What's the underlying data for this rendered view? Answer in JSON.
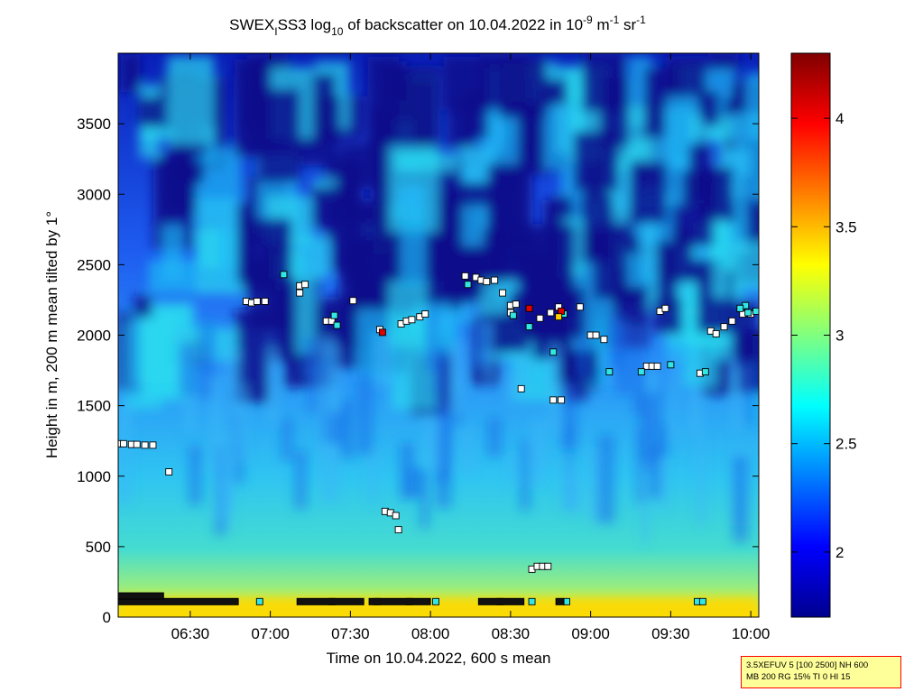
{
  "chart_data": {
    "type": "heatmap",
    "title": {
      "lead": "SWEX",
      "sub1": "I",
      "mid": "SS3 log",
      "sub2": "10",
      "tail": " of backscatter on 10.04.2022 in 10",
      "sup1": "-9",
      "unit_m": " m",
      "sup2": "-1",
      "unit_sr": " sr",
      "sup3": "-1"
    },
    "xlabel": "Time on 10.04.2022, 600 s mean",
    "ylabel": "Height in m, 200 m mean tilted by 1°",
    "x_range": [
      "06:03",
      "10:03"
    ],
    "x_ticks": [
      "06:30",
      "07:00",
      "07:30",
      "08:00",
      "08:30",
      "09:00",
      "09:30",
      "10:00"
    ],
    "ylim": [
      0,
      4000
    ],
    "y_ticks": [
      0,
      500,
      1000,
      1500,
      2000,
      2500,
      3000,
      3500
    ],
    "colorbar": {
      "range": [
        1.7,
        4.3
      ],
      "ticks": [
        "2",
        "2.5",
        "3",
        "3.5",
        "4"
      ],
      "colormap": "jet"
    },
    "grid": false,
    "markers": {
      "white": [
        [
          "06:03",
          1230
        ],
        [
          "06:05",
          1230
        ],
        [
          "06:08",
          1225
        ],
        [
          "06:10",
          1225
        ],
        [
          "06:13",
          1220
        ],
        [
          "06:16",
          1220
        ],
        [
          "06:22",
          1030
        ],
        [
          "06:51",
          2240
        ],
        [
          "06:53",
          2230
        ],
        [
          "06:55",
          2240
        ],
        [
          "06:58",
          2240
        ],
        [
          "07:11",
          2300
        ],
        [
          "07:11",
          2350
        ],
        [
          "07:13",
          2360
        ],
        [
          "07:21",
          2100
        ],
        [
          "07:23",
          2100
        ],
        [
          "07:31",
          2245
        ],
        [
          "07:41",
          2040
        ],
        [
          "07:49",
          2080
        ],
        [
          "07:51",
          2100
        ],
        [
          "07:53",
          2110
        ],
        [
          "07:56",
          2130
        ],
        [
          "07:58",
          2150
        ],
        [
          "08:13",
          2420
        ],
        [
          "08:17",
          2410
        ],
        [
          "08:19",
          2390
        ],
        [
          "08:21",
          2380
        ],
        [
          "08:24",
          2390
        ],
        [
          "08:27",
          2300
        ],
        [
          "08:30",
          2210
        ],
        [
          "08:32",
          2220
        ],
        [
          "08:30",
          2160
        ],
        [
          "08:41",
          2120
        ],
        [
          "08:45",
          2160
        ],
        [
          "08:48",
          2200
        ],
        [
          "08:56",
          2200
        ],
        [
          "09:00",
          2000
        ],
        [
          "09:02",
          2000
        ],
        [
          "09:05",
          1970
        ],
        [
          "09:21",
          1780
        ],
        [
          "09:23",
          1780
        ],
        [
          "09:25",
          1780
        ],
        [
          "09:26",
          2170
        ],
        [
          "09:28",
          2190
        ],
        [
          "09:41",
          1730
        ],
        [
          "09:45",
          2030
        ],
        [
          "09:47",
          2010
        ],
        [
          "09:50",
          2060
        ],
        [
          "09:53",
          2100
        ],
        [
          "09:57",
          2150
        ],
        [
          "10:00",
          2150
        ],
        [
          "08:34",
          1620
        ],
        [
          "08:46",
          1540
        ],
        [
          "08:49",
          1540
        ],
        [
          "08:38",
          340
        ],
        [
          "08:40",
          360
        ],
        [
          "08:42",
          360
        ],
        [
          "08:44",
          360
        ],
        [
          "07:43",
          750
        ],
        [
          "07:45",
          740
        ],
        [
          "07:47",
          720
        ],
        [
          "07:48",
          620
        ]
      ],
      "cyan": [
        [
          "07:05",
          2430
        ],
        [
          "07:24",
          2140
        ],
        [
          "07:25",
          2070
        ],
        [
          "08:14",
          2360
        ],
        [
          "08:31",
          2140
        ],
        [
          "08:37",
          2060
        ],
        [
          "08:50",
          2150
        ],
        [
          "09:07",
          1740
        ],
        [
          "09:19",
          1740
        ],
        [
          "09:30",
          1790
        ],
        [
          "09:43",
          1740
        ],
        [
          "09:58",
          2210
        ],
        [
          "09:56",
          2190
        ],
        [
          "10:02",
          2170
        ],
        [
          "06:56",
          110
        ],
        [
          "07:23",
          110
        ],
        [
          "07:40",
          110
        ],
        [
          "07:52",
          110
        ],
        [
          "08:02",
          110
        ],
        [
          "08:26",
          110
        ],
        [
          "08:38",
          110
        ],
        [
          "08:51",
          110
        ],
        [
          "09:40",
          110
        ],
        [
          "09:42",
          110
        ],
        [
          "08:46",
          1880
        ],
        [
          "09:59",
          2160
        ]
      ],
      "red": [
        [
          "07:42",
          2020
        ],
        [
          "08:37",
          2190
        ],
        [
          "08:49",
          2170
        ]
      ],
      "yellow": [
        [
          "08:48",
          2130
        ]
      ]
    }
  },
  "param_box": {
    "line1": "3.5XEFUV 5 [100 2500] NH 600",
    "line2": "MB 200 RG 15% TI 0 HI 15"
  }
}
